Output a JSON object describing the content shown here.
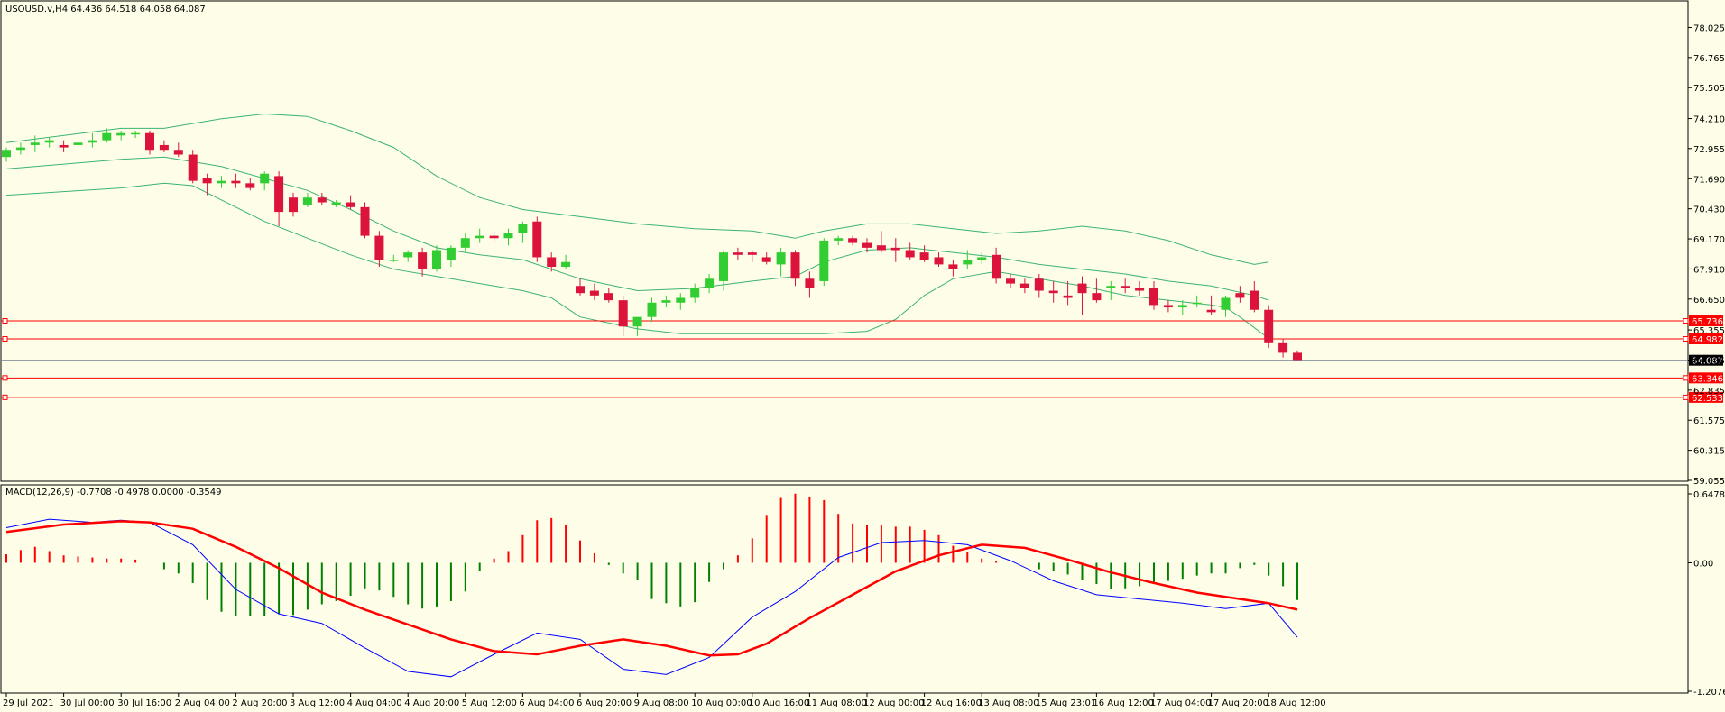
{
  "main_header": "USOUSD.v,H4  64.436 64.518 64.058 64.087",
  "macd_header": "MACD(12,26,9) -0.7708 -0.4978 0.0000 -0.3549",
  "colors": {
    "background": "#fefee8",
    "bull_candle": "#32cd32",
    "bear_candle": "#dc143c",
    "bollinger": "#3cb371",
    "level_line": "#ff0000",
    "macd_signal": "#ff0000",
    "macd_main": "#0000ff",
    "hist_positive": "#ff0000",
    "hist_negative": "#008000"
  },
  "chart_data": [
    {
      "type": "candlestick",
      "symbol": "USOUSD.v",
      "timeframe": "H4",
      "ylim": [
        59.055,
        79.1
      ],
      "yticks": [
        "78.025",
        "76.765",
        "75.505",
        "74.210",
        "72.955",
        "71.690",
        "70.430",
        "69.170",
        "67.910",
        "66.650",
        "65.355",
        "64.095",
        "62.835",
        "61.575",
        "60.315",
        "59.055"
      ],
      "xticks": [
        {
          "i": 0,
          "label": "29 Jul 2021"
        },
        {
          "i": 4,
          "label": "30 Jul 00:00"
        },
        {
          "i": 8,
          "label": "30 Jul 16:00"
        },
        {
          "i": 12,
          "label": "2 Aug 04:00"
        },
        {
          "i": 16,
          "label": "2 Aug 20:00"
        },
        {
          "i": 20,
          "label": "3 Aug 12:00"
        },
        {
          "i": 24,
          "label": "4 Aug 04:00"
        },
        {
          "i": 28,
          "label": "4 Aug 20:00"
        },
        {
          "i": 32,
          "label": "5 Aug 12:00"
        },
        {
          "i": 36,
          "label": "6 Aug 04:00"
        },
        {
          "i": 40,
          "label": "6 Aug 20:00"
        },
        {
          "i": 44,
          "label": "9 Aug 08:00"
        },
        {
          "i": 48,
          "label": "10 Aug 00:00"
        },
        {
          "i": 52,
          "label": "10 Aug 16:00"
        },
        {
          "i": 56,
          "label": "11 Aug 08:00"
        },
        {
          "i": 60,
          "label": "12 Aug 00:00"
        },
        {
          "i": 64,
          "label": "12 Aug 16:00"
        },
        {
          "i": 68,
          "label": "13 Aug 08:00"
        },
        {
          "i": 72,
          "label": "15 Aug 23:01"
        },
        {
          "i": 76,
          "label": "16 Aug 12:00"
        },
        {
          "i": 80,
          "label": "17 Aug 04:00"
        },
        {
          "i": 84,
          "label": "17 Aug 20:00"
        },
        {
          "i": 88,
          "label": "18 Aug 12:00"
        }
      ],
      "candles": [
        [
          72.6,
          73.0,
          72.4,
          72.9
        ],
        [
          72.9,
          73.2,
          72.7,
          73.0
        ],
        [
          73.1,
          73.5,
          72.8,
          73.2
        ],
        [
          73.2,
          73.4,
          73.0,
          73.3
        ],
        [
          73.1,
          73.3,
          72.8,
          73.0
        ],
        [
          73.1,
          73.3,
          72.9,
          73.2
        ],
        [
          73.2,
          73.6,
          73.0,
          73.3
        ],
        [
          73.3,
          73.8,
          73.2,
          73.6
        ],
        [
          73.5,
          73.7,
          73.3,
          73.6
        ],
        [
          73.6,
          73.7,
          73.4,
          73.6
        ],
        [
          73.6,
          73.7,
          72.7,
          72.9
        ],
        [
          73.1,
          73.3,
          72.8,
          72.9
        ],
        [
          72.9,
          73.2,
          72.6,
          72.7
        ],
        [
          72.7,
          72.9,
          71.5,
          71.6
        ],
        [
          71.7,
          71.9,
          71.0,
          71.5
        ],
        [
          71.5,
          71.8,
          71.3,
          71.6
        ],
        [
          71.6,
          71.9,
          71.3,
          71.5
        ],
        [
          71.5,
          71.7,
          71.2,
          71.3
        ],
        [
          71.5,
          72.0,
          71.2,
          71.9
        ],
        [
          71.8,
          72.0,
          69.7,
          70.3
        ],
        [
          70.9,
          71.1,
          70.1,
          70.3
        ],
        [
          70.6,
          71.1,
          70.5,
          70.9
        ],
        [
          70.9,
          71.1,
          70.6,
          70.7
        ],
        [
          70.6,
          70.8,
          70.5,
          70.7
        ],
        [
          70.7,
          71.0,
          70.4,
          70.5
        ],
        [
          70.5,
          70.7,
          69.2,
          69.3
        ],
        [
          69.3,
          69.5,
          68.0,
          68.3
        ],
        [
          68.3,
          68.5,
          68.2,
          68.3
        ],
        [
          68.4,
          68.7,
          68.2,
          68.6
        ],
        [
          68.6,
          68.8,
          67.6,
          67.9
        ],
        [
          67.9,
          68.9,
          67.8,
          68.7
        ],
        [
          68.3,
          68.9,
          68.0,
          68.8
        ],
        [
          68.8,
          69.4,
          68.6,
          69.2
        ],
        [
          69.2,
          69.6,
          69.0,
          69.3
        ],
        [
          69.3,
          69.5,
          69.0,
          69.2
        ],
        [
          69.2,
          69.6,
          68.9,
          69.4
        ],
        [
          69.4,
          69.9,
          69.0,
          69.8
        ],
        [
          69.9,
          70.1,
          68.2,
          68.4
        ],
        [
          68.4,
          68.6,
          67.8,
          68.0
        ],
        [
          68.0,
          68.5,
          67.9,
          68.2
        ],
        [
          67.2,
          67.5,
          66.8,
          66.9
        ],
        [
          67.0,
          67.3,
          66.6,
          66.8
        ],
        [
          66.9,
          67.1,
          66.5,
          66.6
        ],
        [
          66.6,
          66.8,
          65.1,
          65.5
        ],
        [
          65.5,
          65.8,
          65.1,
          65.9
        ],
        [
          65.9,
          66.7,
          65.7,
          66.5
        ],
        [
          66.5,
          66.8,
          66.3,
          66.6
        ],
        [
          66.5,
          66.9,
          66.2,
          66.7
        ],
        [
          66.7,
          67.3,
          66.5,
          67.1
        ],
        [
          67.1,
          67.7,
          66.9,
          67.5
        ],
        [
          67.4,
          68.7,
          67.0,
          68.6
        ],
        [
          68.6,
          68.8,
          68.3,
          68.5
        ],
        [
          68.6,
          68.7,
          68.2,
          68.5
        ],
        [
          68.4,
          68.6,
          68.1,
          68.2
        ],
        [
          68.1,
          68.8,
          67.6,
          68.6
        ],
        [
          68.6,
          68.7,
          67.2,
          67.5
        ],
        [
          67.5,
          67.8,
          66.7,
          67.1
        ],
        [
          67.4,
          69.2,
          67.2,
          69.1
        ],
        [
          69.1,
          69.3,
          68.9,
          69.2
        ],
        [
          69.2,
          69.3,
          68.9,
          69.0
        ],
        [
          69.0,
          69.2,
          68.6,
          68.8
        ],
        [
          68.9,
          69.5,
          68.6,
          68.7
        ],
        [
          68.8,
          69.2,
          68.2,
          68.7
        ],
        [
          68.7,
          69.0,
          68.3,
          68.4
        ],
        [
          68.6,
          68.9,
          68.2,
          68.3
        ],
        [
          68.4,
          68.6,
          68.0,
          68.1
        ],
        [
          68.1,
          68.3,
          67.6,
          67.9
        ],
        [
          68.1,
          68.7,
          67.9,
          68.3
        ],
        [
          68.3,
          68.6,
          68.1,
          68.4
        ],
        [
          68.5,
          68.8,
          67.3,
          67.5
        ],
        [
          67.5,
          67.7,
          67.1,
          67.3
        ],
        [
          67.3,
          67.5,
          66.9,
          67.1
        ],
        [
          67.5,
          67.7,
          66.7,
          67.0
        ],
        [
          67.0,
          67.4,
          66.5,
          66.9
        ],
        [
          66.8,
          67.4,
          66.4,
          66.7
        ],
        [
          67.3,
          67.6,
          66.0,
          66.9
        ],
        [
          66.9,
          67.5,
          66.5,
          66.6
        ],
        [
          67.1,
          67.4,
          66.6,
          67.2
        ],
        [
          67.2,
          67.5,
          66.9,
          67.1
        ],
        [
          67.1,
          67.4,
          66.8,
          67.0
        ],
        [
          67.1,
          67.4,
          66.2,
          66.4
        ],
        [
          66.4,
          66.6,
          66.1,
          66.3
        ],
        [
          66.3,
          66.6,
          66.0,
          66.4
        ],
        [
          66.5,
          66.8,
          66.3,
          66.5
        ],
        [
          66.2,
          66.8,
          66.0,
          66.1
        ],
        [
          66.2,
          66.8,
          65.9,
          66.7
        ],
        [
          66.9,
          67.2,
          66.5,
          66.7
        ],
        [
          67.0,
          67.4,
          66.1,
          66.2
        ],
        [
          66.2,
          66.4,
          64.6,
          64.8
        ],
        [
          64.8,
          65.0,
          64.2,
          64.4
        ],
        [
          64.4,
          64.5,
          64.1,
          64.1
        ]
      ],
      "bollinger_upper": [
        [
          0,
          73.2
        ],
        [
          8,
          73.8
        ],
        [
          11,
          73.8
        ],
        [
          15,
          74.2
        ],
        [
          18,
          74.4
        ],
        [
          21,
          74.3
        ],
        [
          24,
          73.7
        ],
        [
          27,
          73.0
        ],
        [
          30,
          71.8
        ],
        [
          33,
          70.9
        ],
        [
          36,
          70.4
        ],
        [
          40,
          70.1
        ],
        [
          44,
          69.8
        ],
        [
          48,
          69.6
        ],
        [
          52,
          69.5
        ],
        [
          55,
          69.2
        ],
        [
          57,
          69.5
        ],
        [
          60,
          69.8
        ],
        [
          63,
          69.8
        ],
        [
          66,
          69.6
        ],
        [
          69,
          69.4
        ],
        [
          72,
          69.5
        ],
        [
          75,
          69.7
        ],
        [
          78,
          69.5
        ],
        [
          81,
          69.1
        ],
        [
          84,
          68.5
        ],
        [
          87,
          68.1
        ],
        [
          88,
          68.2
        ]
      ],
      "bollinger_middle": [
        [
          0,
          72.1
        ],
        [
          8,
          72.5
        ],
        [
          11,
          72.6
        ],
        [
          15,
          72.2
        ],
        [
          18,
          71.7
        ],
        [
          21,
          71.2
        ],
        [
          24,
          70.4
        ],
        [
          27,
          69.5
        ],
        [
          30,
          68.8
        ],
        [
          33,
          68.5
        ],
        [
          36,
          68.3
        ],
        [
          40,
          67.5
        ],
        [
          44,
          67.0
        ],
        [
          48,
          67.1
        ],
        [
          52,
          67.4
        ],
        [
          55,
          67.6
        ],
        [
          57,
          68.2
        ],
        [
          60,
          68.7
        ],
        [
          63,
          68.8
        ],
        [
          66,
          68.6
        ],
        [
          69,
          68.4
        ],
        [
          72,
          68.1
        ],
        [
          75,
          67.9
        ],
        [
          78,
          67.7
        ],
        [
          81,
          67.4
        ],
        [
          84,
          67.2
        ],
        [
          87,
          66.8
        ],
        [
          88,
          66.6
        ]
      ],
      "bollinger_lower": [
        [
          0,
          71.0
        ],
        [
          8,
          71.3
        ],
        [
          11,
          71.5
        ],
        [
          13,
          71.4
        ],
        [
          15,
          70.8
        ],
        [
          18,
          69.9
        ],
        [
          21,
          69.2
        ],
        [
          24,
          68.5
        ],
        [
          27,
          67.9
        ],
        [
          30,
          67.6
        ],
        [
          33,
          67.3
        ],
        [
          36,
          67.0
        ],
        [
          38,
          66.7
        ],
        [
          40,
          65.9
        ],
        [
          44,
          65.4
        ],
        [
          47,
          65.2
        ],
        [
          52,
          65.2
        ],
        [
          57,
          65.2
        ],
        [
          60,
          65.3
        ],
        [
          62,
          65.8
        ],
        [
          64,
          66.8
        ],
        [
          66,
          67.5
        ],
        [
          69,
          67.8
        ],
        [
          72,
          67.5
        ],
        [
          75,
          67.2
        ],
        [
          78,
          66.8
        ],
        [
          81,
          66.6
        ],
        [
          84,
          66.4
        ],
        [
          85,
          66.3
        ],
        [
          86,
          65.9
        ],
        [
          88,
          65.0
        ]
      ],
      "levels": [
        {
          "label": "65.736",
          "value": 65.736
        },
        {
          "label": "64.982",
          "value": 64.982
        },
        {
          "label": "63.346",
          "value": 63.346
        },
        {
          "label": "62.533",
          "value": 62.533
        }
      ],
      "current_price": {
        "label": "64.087",
        "value": 64.087
      }
    },
    {
      "type": "macd",
      "params": "MACD(12,26,9)",
      "ylim": [
        -1.2076,
        0.6478
      ],
      "yticks": [
        "0.6478",
        "0.00",
        "-1.2076"
      ],
      "histogram": [
        0.08,
        0.12,
        0.15,
        0.11,
        0.07,
        0.06,
        0.05,
        0.04,
        0.04,
        0.03,
        0.0,
        -0.06,
        -0.1,
        -0.19,
        -0.35,
        -0.46,
        -0.5,
        -0.5,
        -0.5,
        -0.48,
        -0.49,
        -0.44,
        -0.39,
        -0.36,
        -0.31,
        -0.24,
        -0.26,
        -0.32,
        -0.39,
        -0.43,
        -0.41,
        -0.36,
        -0.27,
        -0.08,
        0.04,
        0.11,
        0.26,
        0.4,
        0.42,
        0.36,
        0.21,
        0.09,
        -0.02,
        -0.1,
        -0.16,
        -0.34,
        -0.38,
        -0.41,
        -0.37,
        -0.18,
        -0.06,
        0.07,
        0.23,
        0.45,
        0.61,
        0.65,
        0.62,
        0.59,
        0.46,
        0.37,
        0.36,
        0.36,
        0.34,
        0.34,
        0.31,
        0.26,
        0.16,
        0.1,
        0.04,
        0.02,
        0.0,
        0.0,
        -0.06,
        -0.08,
        -0.11,
        -0.16,
        -0.2,
        -0.25,
        -0.24,
        -0.22,
        -0.18,
        -0.17,
        -0.15,
        -0.12,
        -0.1,
        -0.1,
        -0.05,
        -0.02,
        -0.12,
        -0.22,
        -0.35
      ],
      "signal_line": [
        [
          0,
          0.29
        ],
        [
          4,
          0.36
        ],
        [
          8,
          0.39
        ],
        [
          10,
          0.38
        ],
        [
          13,
          0.32
        ],
        [
          16,
          0.15
        ],
        [
          19,
          -0.05
        ],
        [
          22,
          -0.28
        ],
        [
          25,
          -0.44
        ],
        [
          28,
          -0.58
        ],
        [
          31,
          -0.72
        ],
        [
          34,
          -0.83
        ],
        [
          37,
          -0.86
        ],
        [
          40,
          -0.78
        ],
        [
          43,
          -0.72
        ],
        [
          46,
          -0.78
        ],
        [
          49,
          -0.87
        ],
        [
          51,
          -0.86
        ],
        [
          53,
          -0.76
        ],
        [
          56,
          -0.52
        ],
        [
          59,
          -0.3
        ],
        [
          62,
          -0.08
        ],
        [
          65,
          0.07
        ],
        [
          68,
          0.17
        ],
        [
          71,
          0.14
        ],
        [
          74,
          0.03
        ],
        [
          77,
          -0.09
        ],
        [
          80,
          -0.19
        ],
        [
          83,
          -0.28
        ],
        [
          86,
          -0.34
        ],
        [
          88,
          -0.38
        ],
        [
          90,
          -0.44
        ]
      ],
      "macd_line": [
        [
          0,
          0.33
        ],
        [
          3,
          0.41
        ],
        [
          6,
          0.38
        ],
        [
          8,
          0.4
        ],
        [
          10,
          0.38
        ],
        [
          13,
          0.17
        ],
        [
          16,
          -0.25
        ],
        [
          19,
          -0.48
        ],
        [
          22,
          -0.57
        ],
        [
          25,
          -0.8
        ],
        [
          28,
          -1.02
        ],
        [
          31,
          -1.07
        ],
        [
          34,
          -0.86
        ],
        [
          37,
          -0.66
        ],
        [
          40,
          -0.72
        ],
        [
          43,
          -1.0
        ],
        [
          46,
          -1.05
        ],
        [
          49,
          -0.89
        ],
        [
          52,
          -0.51
        ],
        [
          55,
          -0.27
        ],
        [
          58,
          0.05
        ],
        [
          61,
          0.19
        ],
        [
          64,
          0.21
        ],
        [
          67,
          0.17
        ],
        [
          70,
          0.02
        ],
        [
          73,
          -0.17
        ],
        [
          76,
          -0.3
        ],
        [
          79,
          -0.34
        ],
        [
          82,
          -0.38
        ],
        [
          85,
          -0.43
        ],
        [
          88,
          -0.38
        ],
        [
          90,
          -0.7
        ]
      ]
    }
  ]
}
